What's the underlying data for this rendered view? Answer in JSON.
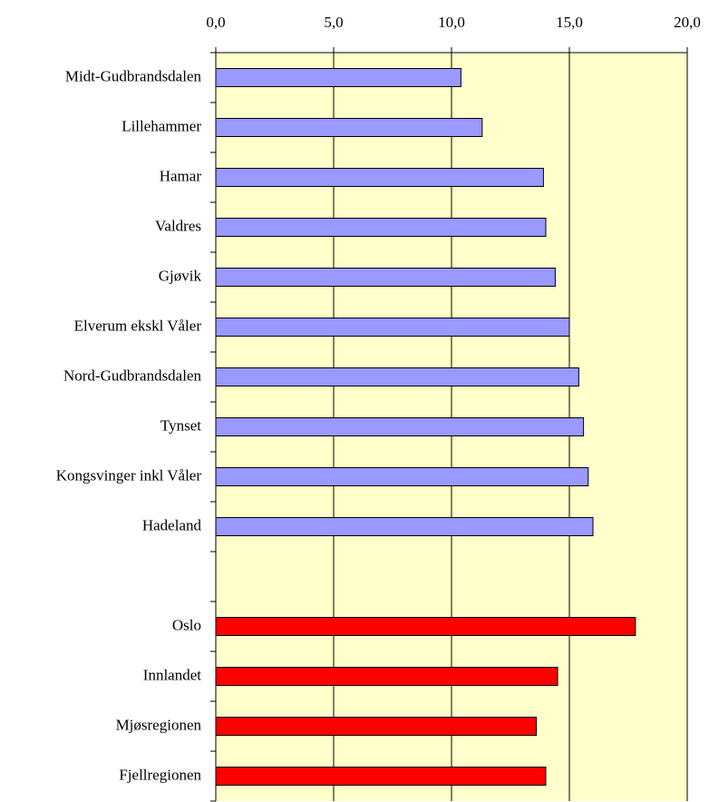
{
  "chart_data": {
    "type": "barh",
    "categories": [
      "Midt-Gudbrandsdalen",
      "Lillehammer",
      "Hamar",
      "Valdres",
      "Gjøvik",
      "Elverum ekskl Våler",
      "Nord-Gudbrandsdalen",
      "Tynset",
      "Kongsvinger inkl Våler",
      "Hadeland",
      null,
      "Oslo",
      "Innlandet",
      "Mjøsregionen",
      "Fjellregionen"
    ],
    "values": [
      10.4,
      11.3,
      13.9,
      14.0,
      14.4,
      15.0,
      15.4,
      15.6,
      15.8,
      16.0,
      null,
      17.8,
      14.5,
      13.6,
      14.0
    ],
    "colors": [
      "#9999ff",
      "#9999ff",
      "#9999ff",
      "#9999ff",
      "#9999ff",
      "#9999ff",
      "#9999ff",
      "#9999ff",
      "#9999ff",
      "#9999ff",
      null,
      "#ff0000",
      "#ff0000",
      "#ff0000",
      "#ff0000"
    ],
    "xlim": [
      0,
      20
    ],
    "xticks": [
      {
        "value": 0,
        "label": "0,0"
      },
      {
        "value": 5,
        "label": "5,0"
      },
      {
        "value": 10,
        "label": "10,0"
      },
      {
        "value": 15,
        "label": "15,0"
      },
      {
        "value": 20,
        "label": "20,0"
      }
    ],
    "grid": true
  }
}
